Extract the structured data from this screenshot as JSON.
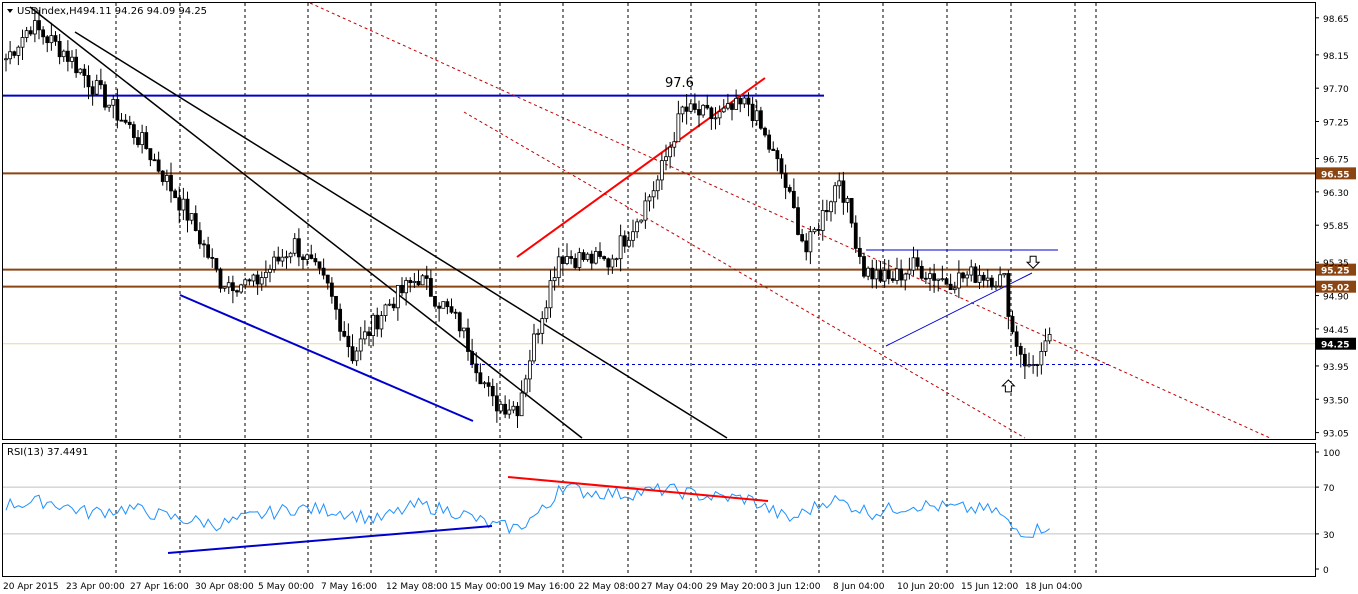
{
  "header": {
    "symbol_timeframe": "USDIndex,H4",
    "ohlc": "94.11 94.26 94.09 94.25",
    "dropdown_icon": "triangle-down-icon"
  },
  "rsi_header": "RSI(13) 37.4491",
  "annotations": {
    "peak_label": "97.6"
  },
  "colors": {
    "bull_candle": "#000000",
    "bear_candle": "#000000",
    "horizontal_level": "#8b4513",
    "blue_line": "#0000cc",
    "red_line": "#ff0000",
    "channel": "#c00000",
    "rsi_line": "#1e90ff",
    "price_marker_bg": "#000000"
  },
  "chart_data": [
    {
      "type": "candlestick",
      "title": "USDIndex,H4",
      "price_axis_ticks": [
        "98.65",
        "98.15",
        "97.70",
        "97.25",
        "96.75",
        "96.30",
        "95.85",
        "95.35",
        "94.90",
        "94.45",
        "93.95",
        "93.50",
        "93.05"
      ],
      "ylim": [
        92.95,
        98.85
      ],
      "time_axis_labels": [
        "20 Apr 2015",
        "23 Apr 00:00",
        "27 Apr 16:00",
        "30 Apr 08:00",
        "5 May 00:00",
        "7 May 16:00",
        "12 May 08:00",
        "15 May 00:00",
        "19 May 16:00",
        "22 May 08:00",
        "27 May 04:00",
        "29 May 20:00",
        "3 Jun 12:00",
        "8 Jun 04:00",
        "10 Jun 20:00",
        "15 Jun 12:00",
        "18 Jun 04:00"
      ],
      "candle_count": 254,
      "close_path_keypoints": [
        [
          0,
          98.1
        ],
        [
          6,
          98.55
        ],
        [
          14,
          98.2
        ],
        [
          24,
          97.55
        ],
        [
          34,
          96.9
        ],
        [
          45,
          95.9
        ],
        [
          52,
          95.1
        ],
        [
          60,
          95.05
        ],
        [
          70,
          95.6
        ],
        [
          78,
          95.0
        ],
        [
          84,
          94.1
        ],
        [
          92,
          94.75
        ],
        [
          100,
          95.15
        ],
        [
          110,
          94.5
        ],
        [
          118,
          93.45
        ],
        [
          124,
          93.4
        ],
        [
          128,
          94.3
        ],
        [
          134,
          95.45
        ],
        [
          140,
          95.4
        ],
        [
          146,
          95.35
        ],
        [
          152,
          95.85
        ],
        [
          158,
          96.45
        ],
        [
          164,
          97.4
        ],
        [
          172,
          97.3
        ],
        [
          180,
          97.5
        ],
        [
          188,
          96.55
        ],
        [
          194,
          95.5
        ],
        [
          202,
          96.5
        ],
        [
          208,
          95.25
        ],
        [
          214,
          95.1
        ],
        [
          220,
          95.3
        ],
        [
          228,
          95.1
        ],
        [
          236,
          95.2
        ],
        [
          242,
          95.1
        ],
        [
          244,
          94.4
        ],
        [
          248,
          93.9
        ],
        [
          253,
          94.25
        ]
      ],
      "current_price": "94.25",
      "horizontal_levels": [
        {
          "price": 96.55,
          "label": "96.55"
        },
        {
          "price": 95.25,
          "label": "95.25"
        },
        {
          "price": 95.02,
          "label": "95.02"
        }
      ],
      "blue_horizontal_level": 97.6,
      "dashed_support_level": 93.97,
      "arrows": [
        {
          "direction": "down",
          "candle": 249,
          "price": 95.35
        },
        {
          "direction": "up",
          "candle": 243,
          "price": 93.68
        }
      ]
    },
    {
      "type": "line",
      "title": "RSI(13) 37.4491",
      "axis_ticks": [
        "100",
        "70",
        "30",
        "0"
      ],
      "ylim": [
        0,
        100
      ],
      "levels": [
        70,
        30
      ],
      "rsi_keypoints": [
        [
          0,
          55
        ],
        [
          10,
          58
        ],
        [
          20,
          48
        ],
        [
          30,
          52
        ],
        [
          40,
          44
        ],
        [
          52,
          38
        ],
        [
          60,
          45
        ],
        [
          70,
          52
        ],
        [
          80,
          50
        ],
        [
          90,
          42
        ],
        [
          100,
          55
        ],
        [
          110,
          48
        ],
        [
          118,
          37
        ],
        [
          124,
          35
        ],
        [
          132,
          55
        ],
        [
          134,
          72
        ],
        [
          140,
          66
        ],
        [
          150,
          64
        ],
        [
          160,
          68
        ],
        [
          170,
          62
        ],
        [
          180,
          60
        ],
        [
          190,
          42
        ],
        [
          200,
          60
        ],
        [
          210,
          48
        ],
        [
          220,
          55
        ],
        [
          230,
          52
        ],
        [
          240,
          50
        ],
        [
          244,
          35
        ],
        [
          248,
          31
        ],
        [
          253,
          38
        ]
      ],
      "current_value": "37.4491"
    }
  ]
}
